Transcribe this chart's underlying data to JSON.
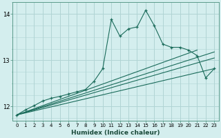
{
  "xlabel": "Humidex (Indice chaleur)",
  "bg_color": "#d4eeee",
  "grid_color": "#b0d4d4",
  "line_color": "#1a6b5a",
  "xlim": [
    -0.5,
    23.5
  ],
  "ylim": [
    11.7,
    14.25
  ],
  "yticks": [
    12,
    13,
    14
  ],
  "xticks": [
    0,
    1,
    2,
    3,
    4,
    5,
    6,
    7,
    8,
    9,
    10,
    11,
    12,
    13,
    14,
    15,
    16,
    17,
    18,
    19,
    20,
    21,
    22,
    23
  ],
  "main_series_x": [
    0,
    1,
    2,
    3,
    4,
    5,
    6,
    7,
    8,
    9,
    10,
    11,
    12,
    13,
    14,
    15,
    16,
    17,
    18,
    19,
    20,
    21,
    22,
    23
  ],
  "main_series_y": [
    11.82,
    11.93,
    12.02,
    12.12,
    12.18,
    12.22,
    12.27,
    12.32,
    12.37,
    12.55,
    12.82,
    13.88,
    13.52,
    13.68,
    13.72,
    14.08,
    13.75,
    13.35,
    13.28,
    13.28,
    13.22,
    13.1,
    12.62,
    12.82
  ],
  "trend1_x": [
    0,
    23
  ],
  "trend1_y": [
    11.82,
    13.18
  ],
  "trend2_x": [
    0,
    23
  ],
  "trend2_y": [
    11.82,
    13.05
  ],
  "trend3_x": [
    0,
    21
  ],
  "trend3_y": [
    11.82,
    13.22
  ],
  "trend4_x": [
    0,
    23
  ],
  "trend4_y": [
    11.82,
    12.82
  ]
}
